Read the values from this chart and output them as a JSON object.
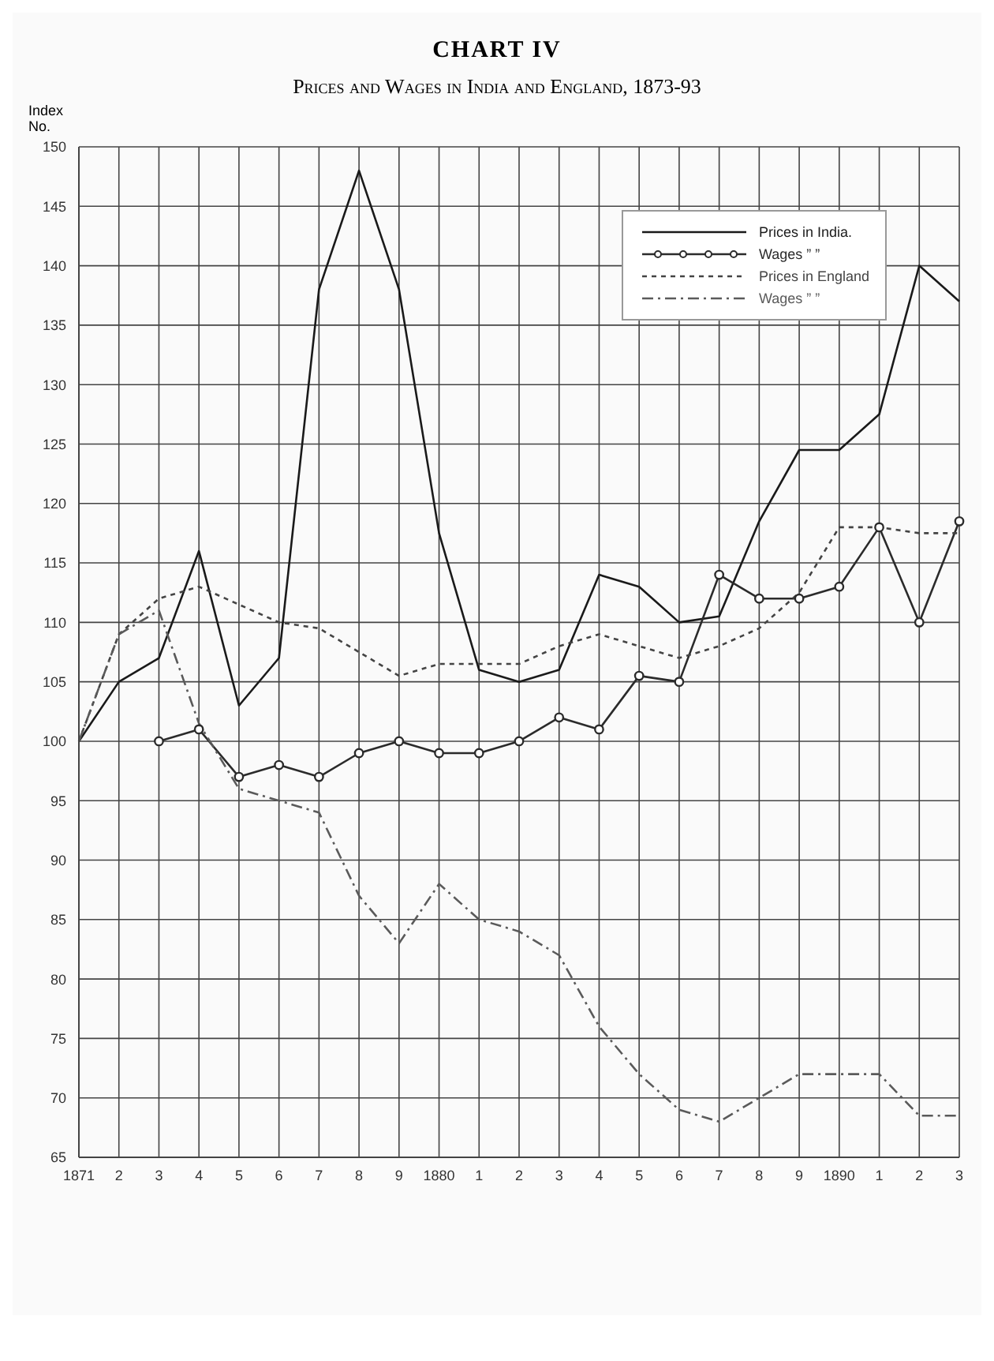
{
  "chart_data": {
    "type": "line",
    "title": "CHART IV",
    "subtitle": "Prices and Wages in India and England, 1873-93",
    "ylabel": "Index No.",
    "categories": [
      "1871",
      "2",
      "3",
      "4",
      "5",
      "6",
      "7",
      "8",
      "9",
      "1880",
      "1",
      "2",
      "3",
      "4",
      "5",
      "6",
      "7",
      "8",
      "9",
      "1890",
      "1",
      "2",
      "3"
    ],
    "series": [
      {
        "name": "Prices in India.",
        "color": "#1a1a1a",
        "line_style": "solid",
        "marker": "none",
        "values": [
          100,
          105,
          107,
          116,
          103,
          107,
          138,
          148,
          138,
          117.5,
          106,
          105,
          106,
          114,
          113,
          110,
          110.5,
          118.5,
          124.5,
          124.5,
          127.5,
          140,
          137
        ]
      },
      {
        "name": "Wages ” ”",
        "color": "#2b2b2b",
        "line_style": "solid",
        "marker": "circle",
        "values": [
          null,
          null,
          100,
          101,
          97,
          98,
          97,
          99,
          100,
          99,
          99,
          100,
          102,
          101,
          105.5,
          105,
          114,
          112,
          112,
          113,
          118,
          110,
          118.5
        ]
      },
      {
        "name": "Prices in England",
        "color": "#444444",
        "line_style": "dotted",
        "marker": "none",
        "values": [
          100,
          109,
          112,
          113,
          111.5,
          110,
          109.5,
          107.5,
          105.5,
          106.5,
          106.5,
          106.5,
          108,
          109,
          108,
          107,
          108,
          109.5,
          112.5,
          118,
          118,
          117.5,
          117.5
        ]
      },
      {
        "name": "Wages ” ”",
        "color": "#5a5a5a",
        "line_style": "dashed",
        "marker": "none",
        "values": [
          100,
          109,
          111,
          101.5,
          96,
          95,
          94,
          87,
          83,
          88,
          85,
          84,
          82,
          76,
          72,
          69,
          68,
          70,
          72,
          72,
          72,
          68.5,
          68.5
        ]
      }
    ],
    "ylim": [
      65,
      150
    ],
    "yticks": [
      65,
      70,
      75,
      80,
      85,
      90,
      95,
      100,
      105,
      110,
      115,
      120,
      125,
      130,
      135,
      140,
      145,
      150
    ],
    "grid": true,
    "legend": "top right"
  }
}
